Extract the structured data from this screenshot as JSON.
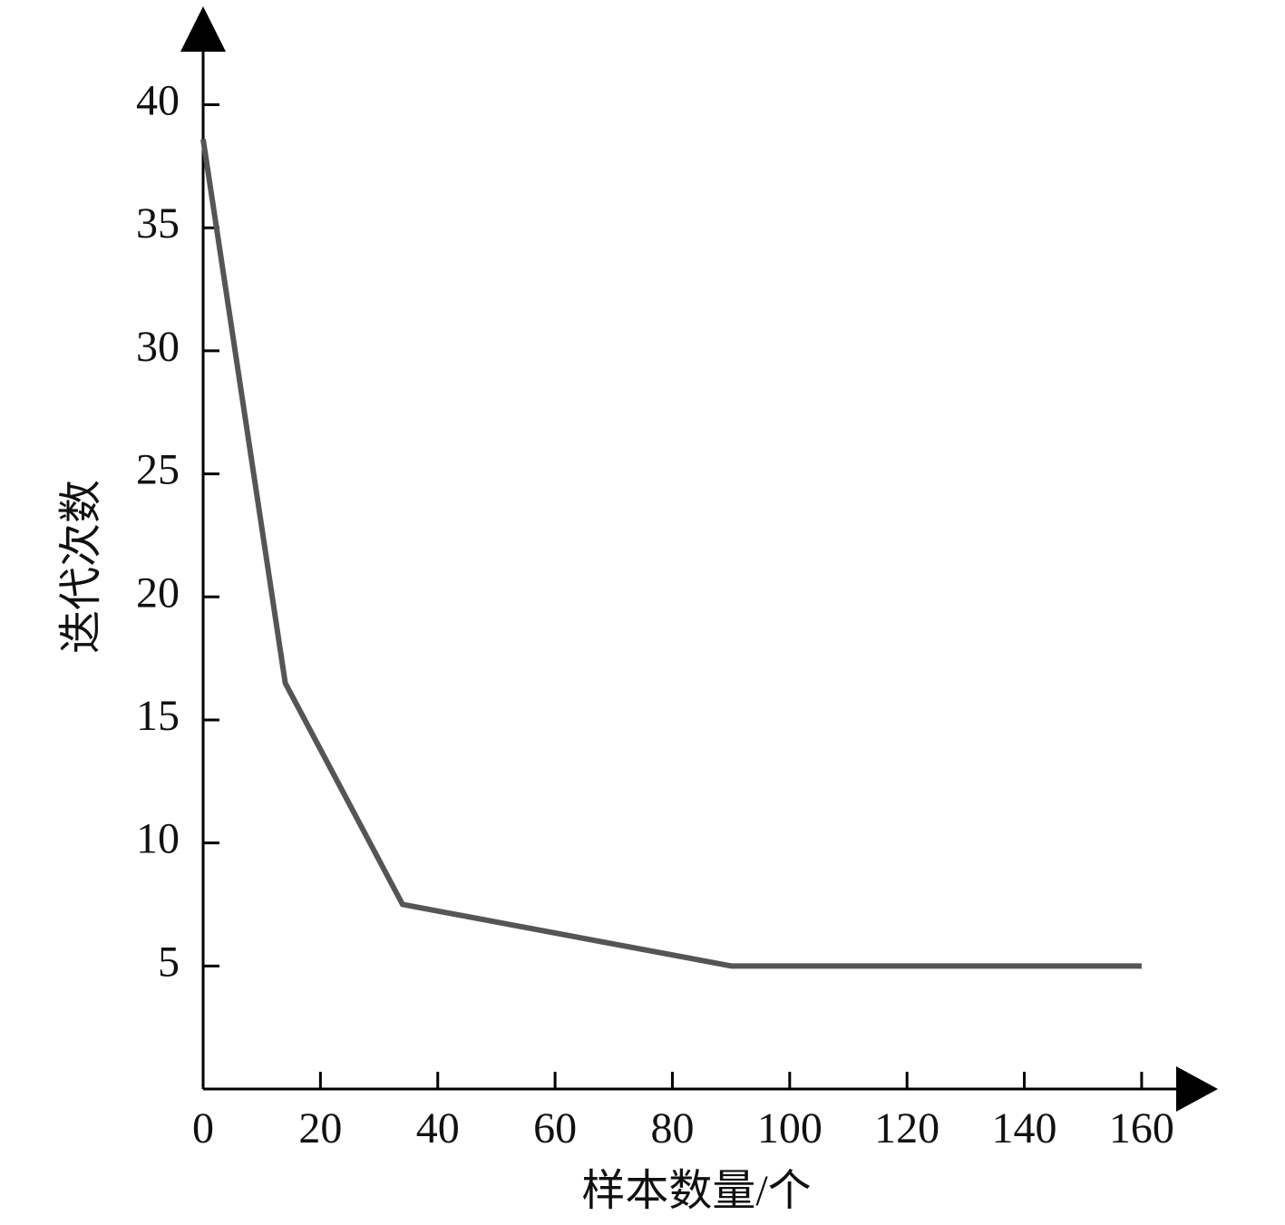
{
  "chart_data": {
    "type": "line",
    "x_label": "样本数量/个",
    "y_label": "迭代次数",
    "x": [
      0,
      14,
      34,
      90,
      160
    ],
    "series": [
      {
        "color": "#555555",
        "values": [
          38.6,
          16.5,
          7.5,
          5,
          5
        ]
      }
    ],
    "xlim": [
      0,
      173
    ],
    "ylim": [
      0,
      44
    ],
    "xticks": [
      0,
      20,
      40,
      60,
      80,
      100,
      120,
      140,
      160
    ],
    "yticks": [
      5,
      10,
      15,
      20,
      25,
      30,
      35,
      40
    ],
    "grid": false
  }
}
